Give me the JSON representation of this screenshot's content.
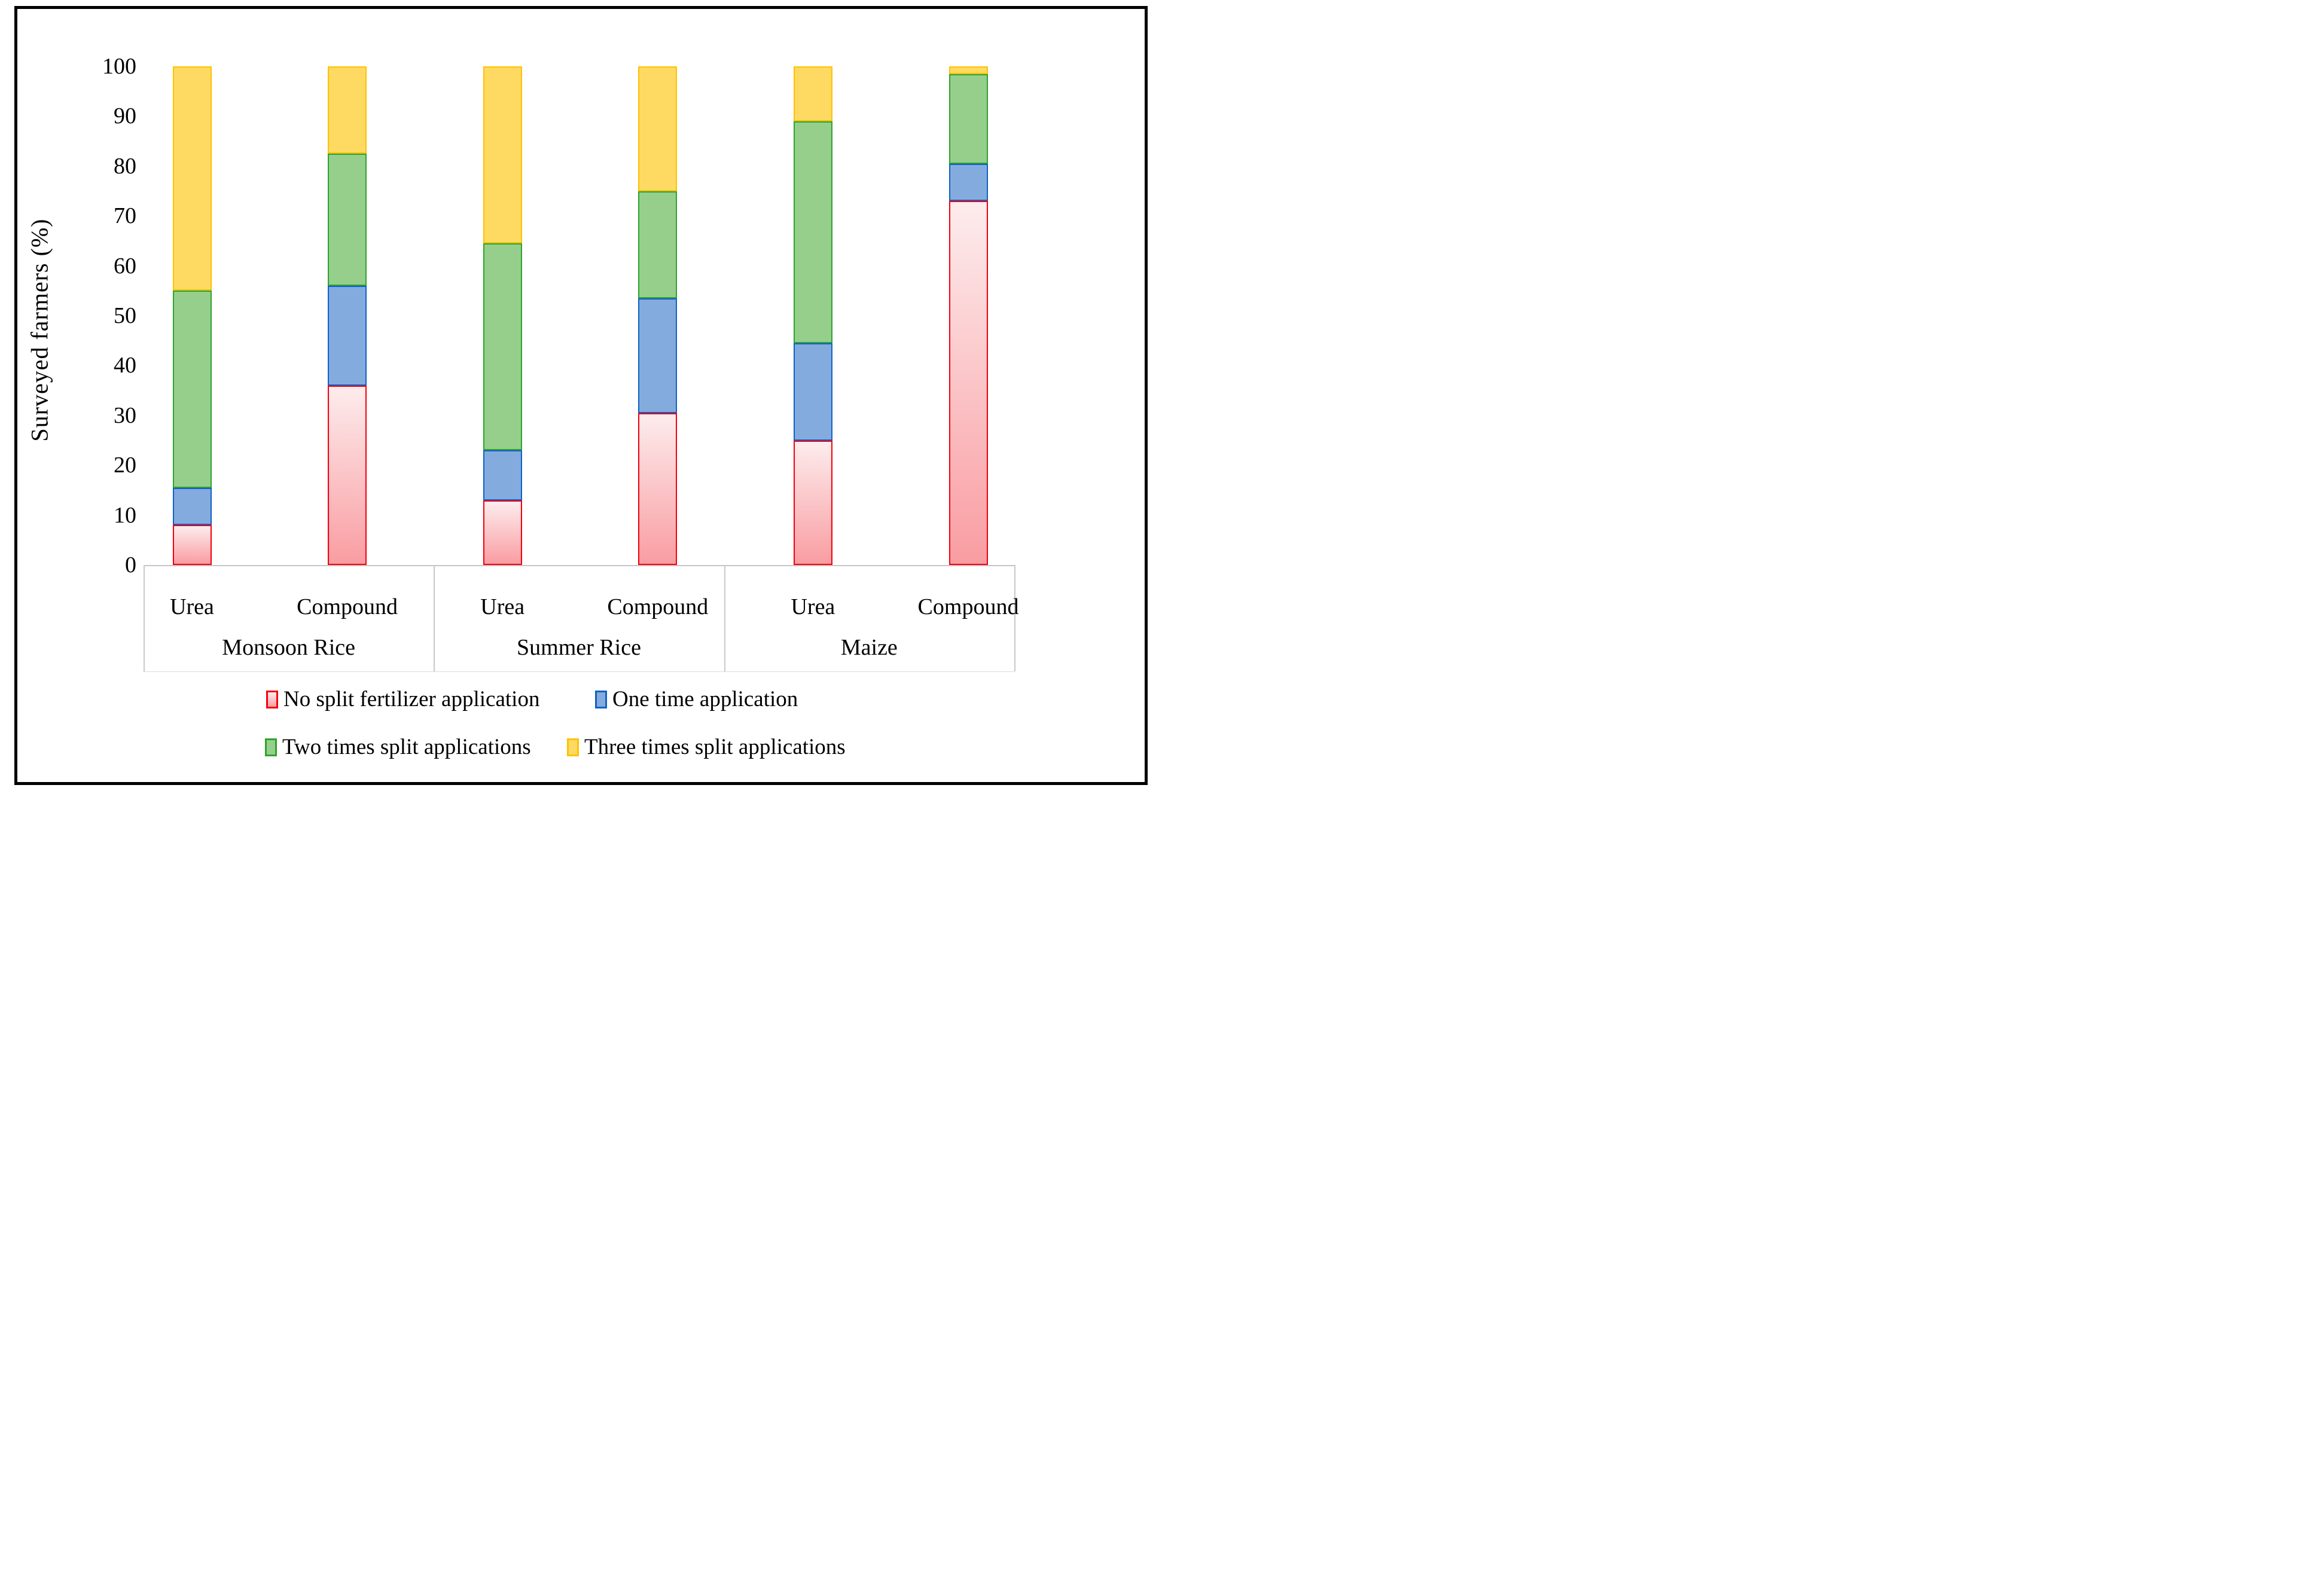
{
  "figure": {
    "background": "#ffffff",
    "frame_color": "#000000",
    "axis_line_color": "#c6c6c6"
  },
  "chart_data": {
    "type": "bar",
    "stacked": true,
    "orientation": "vertical",
    "title": "",
    "ylabel": "Surveyed farmers (%)",
    "ylim": [
      0,
      100
    ],
    "yticks": [
      0,
      10,
      20,
      30,
      40,
      50,
      60,
      70,
      80,
      90,
      100
    ],
    "grid": false,
    "legend_position": "bottom",
    "groups": [
      "Monsoon Rice",
      "Summer Rice",
      "Maize"
    ],
    "categories": [
      "Urea",
      "Compound",
      "Urea",
      "Compound",
      "Urea",
      "Compound"
    ],
    "series": [
      {
        "name": "No split fertilizer application",
        "values": [
          8,
          36,
          13,
          30.5,
          25,
          73
        ],
        "fill_top": "#fdeced",
        "fill_bottom": "#f99da2",
        "border": "#f2000d"
      },
      {
        "name": "One time application",
        "values": [
          7.5,
          20,
          10,
          23,
          19.5,
          7.5
        ],
        "fill_top": "#84abde",
        "fill_bottom": "#84abde",
        "border": "#1061c6"
      },
      {
        "name": "Two times split applications",
        "values": [
          39.5,
          26.5,
          41.5,
          21.5,
          44.5,
          18
        ],
        "fill_top": "#96cf8c",
        "fill_bottom": "#96cf8c",
        "border": "#2ea32e"
      },
      {
        "name": "Three times split applications",
        "values": [
          45,
          17.5,
          35.5,
          25,
          11,
          1.5
        ],
        "fill_top": "#ffda63",
        "fill_bottom": "#ffda63",
        "border": "#ffc103"
      }
    ]
  }
}
